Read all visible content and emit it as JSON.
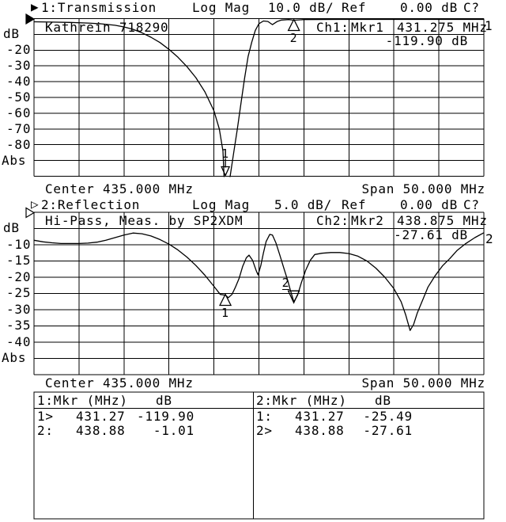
{
  "colors": {
    "background": "#ffffff",
    "ink": "#000000"
  },
  "ch1": {
    "header": {
      "indicator_glyph": "▶",
      "indicator_icon": "filled-right-triangle-icon",
      "trace_label": "1:Transmission",
      "format": "Log Mag",
      "scale": "10.0 dB/",
      "ref_label": "Ref",
      "ref_value": "0.00 dB",
      "cal_status": "C?"
    },
    "annotation": "Kathrein 718290",
    "marker_readout": {
      "channel": "Ch1:",
      "marker": "Mkr1",
      "freq": "431.275 MHz",
      "value": "-119.90 dB"
    },
    "y_labels": {
      "unit": "dB",
      "l20": "-20",
      "l30": "-30",
      "l40": "-40",
      "l50": "-50",
      "l60": "-60",
      "l70": "-70",
      "l80": "-80",
      "abs": "Abs"
    },
    "center": "Center 435.000 MHz",
    "span": "Span 50.000 MHz",
    "edge_trace_number": "1"
  },
  "ch2": {
    "header": {
      "indicator_glyph": "▷",
      "indicator_icon": "open-right-triangle-icon",
      "trace_label": "2:Reflection",
      "format": "Log Mag",
      "scale": "5.0 dB/",
      "ref_label": "Ref",
      "ref_value": "0.00 dB",
      "cal_status": "C?"
    },
    "annotation": "Hi-Pass, Meas. by SP2XDM",
    "marker_readout": {
      "channel": "Ch2:",
      "marker": "Mkr2",
      "freq": "438.875 MHz",
      "value": "-27.61 dB"
    },
    "y_labels": {
      "unit": "dB",
      "l10": "-10",
      "l15": "-15",
      "l20": "-20",
      "l25": "-25",
      "l30": "-30",
      "l35": "-35",
      "l40": "-40",
      "abs": "Abs"
    },
    "center": "Center 435.000 MHz",
    "span": "Span 50.000 MHz",
    "edge_trace_number": "2"
  },
  "marker_table": {
    "left": {
      "header": "1:Mkr (MHz)",
      "unit": "dB",
      "rows": [
        {
          "tag": "1>",
          "freq": "431.27",
          "val": "-119.90"
        },
        {
          "tag": "2:",
          "freq": "438.88",
          "val": "-1.01"
        }
      ]
    },
    "right": {
      "header": "2:Mkr (MHz)",
      "unit": "dB",
      "rows": [
        {
          "tag": "1:",
          "freq": "431.27",
          "val": "-25.49"
        },
        {
          "tag": "2>",
          "freq": "438.88",
          "val": "-27.61"
        }
      ]
    }
  },
  "chart_data": [
    {
      "type": "line",
      "title": "1:Transmission  Kathrein 718290",
      "ylabel": "dB",
      "xlabel": "MHz",
      "center_mhz": 435.0,
      "span_mhz": 50.0,
      "xlim": [
        410,
        460
      ],
      "ylim": [
        -100,
        0
      ],
      "scale_db_per_div": 10.0,
      "ref_db": 0.0,
      "grid": true,
      "ref_indicator": "filled",
      "x": [
        410,
        412,
        414,
        416,
        417.5,
        419,
        420,
        421,
        422,
        423,
        424,
        425,
        426,
        427,
        428,
        429,
        430,
        430.6,
        431.0,
        431.27,
        432.2,
        432.6,
        433.0,
        433.4,
        433.8,
        434.2,
        434.6,
        435.0,
        435.5,
        436.0,
        436.5,
        437.0,
        437.5,
        438.3,
        438.88,
        440,
        444,
        448,
        452,
        456,
        460
      ],
      "y": [
        -2.0,
        -2.2,
        -2.4,
        -2.8,
        -3.3,
        -4.2,
        -5.3,
        -6.8,
        -9.0,
        -11.8,
        -15.2,
        -19.5,
        -24.5,
        -30.5,
        -37.5,
        -46.5,
        -58.5,
        -70,
        -84,
        -119.9,
        -85,
        -70,
        -54,
        -38,
        -24,
        -15,
        -7.5,
        -3.2,
        -1.5,
        -1.8,
        -3.8,
        -1.9,
        -0.9,
        -0.6,
        -1.0,
        -0.6,
        -0.5,
        -0.5,
        -0.5,
        -0.5,
        -0.5
      ],
      "markers": [
        {
          "label": "1",
          "x": 431.275,
          "y": -119.9,
          "style": "offscale_down"
        },
        {
          "label": "2",
          "x": 438.88,
          "y": -1.01,
          "style": "up"
        }
      ]
    },
    {
      "type": "line",
      "title": "2:Reflection  Hi-Pass, Meas. by SP2XDM",
      "ylabel": "dB",
      "xlabel": "MHz",
      "center_mhz": 435.0,
      "span_mhz": 50.0,
      "xlim": [
        410,
        460
      ],
      "ylim": [
        -50,
        0
      ],
      "scale_db_per_div": 5.0,
      "ref_db": 0.0,
      "grid": true,
      "ref_indicator": "open",
      "x": [
        410,
        411,
        412,
        413,
        414,
        415,
        416,
        417,
        418,
        419,
        420,
        421,
        422,
        423,
        424,
        425,
        426,
        427,
        428,
        429,
        430,
        430.7,
        431.27,
        431.6,
        432.0,
        432.4,
        432.8,
        433.2,
        433.6,
        433.9,
        434.3,
        434.7,
        434.9,
        435.2,
        435.5,
        435.8,
        436.2,
        436.5,
        436.9,
        437.3,
        437.8,
        438.2,
        438.5,
        438.88,
        439.3,
        439.7,
        440.2,
        440.7,
        441.2,
        442,
        443,
        444,
        445,
        446,
        447,
        448,
        449,
        450,
        450.8,
        451.3,
        451.8,
        452.2,
        452.6,
        453.2,
        453.8,
        454.6,
        455.4,
        456.2,
        457,
        458,
        459,
        460
      ],
      "y": [
        -8.6,
        -9.1,
        -9.4,
        -9.6,
        -9.6,
        -9.6,
        -9.5,
        -9.2,
        -8.6,
        -7.8,
        -7.0,
        -6.4,
        -6.6,
        -7.3,
        -8.4,
        -9.8,
        -11.6,
        -13.8,
        -16.4,
        -19.4,
        -22.8,
        -25.3,
        -25.5,
        -26.3,
        -25.3,
        -23.0,
        -20.3,
        -16.6,
        -14.0,
        -13.2,
        -14.8,
        -18.0,
        -19.3,
        -16.5,
        -12.5,
        -9.0,
        -6.8,
        -7.0,
        -9.5,
        -13.0,
        -17.5,
        -21.0,
        -24.0,
        -27.6,
        -25.5,
        -21.8,
        -17.8,
        -14.8,
        -13.0,
        -12.6,
        -12.4,
        -12.4,
        -12.7,
        -13.5,
        -15.0,
        -17.2,
        -20.0,
        -23.5,
        -27.5,
        -31.5,
        -36.4,
        -34.5,
        -31.0,
        -27.0,
        -23.0,
        -19.5,
        -16.5,
        -14.3,
        -11.8,
        -9.6,
        -7.8,
        -6.3
      ],
      "markers": [
        {
          "label": "1",
          "x": 431.27,
          "y": -25.49,
          "style": "up"
        },
        {
          "label": "2",
          "x": 438.875,
          "y": -27.61,
          "style": "down"
        }
      ]
    }
  ]
}
